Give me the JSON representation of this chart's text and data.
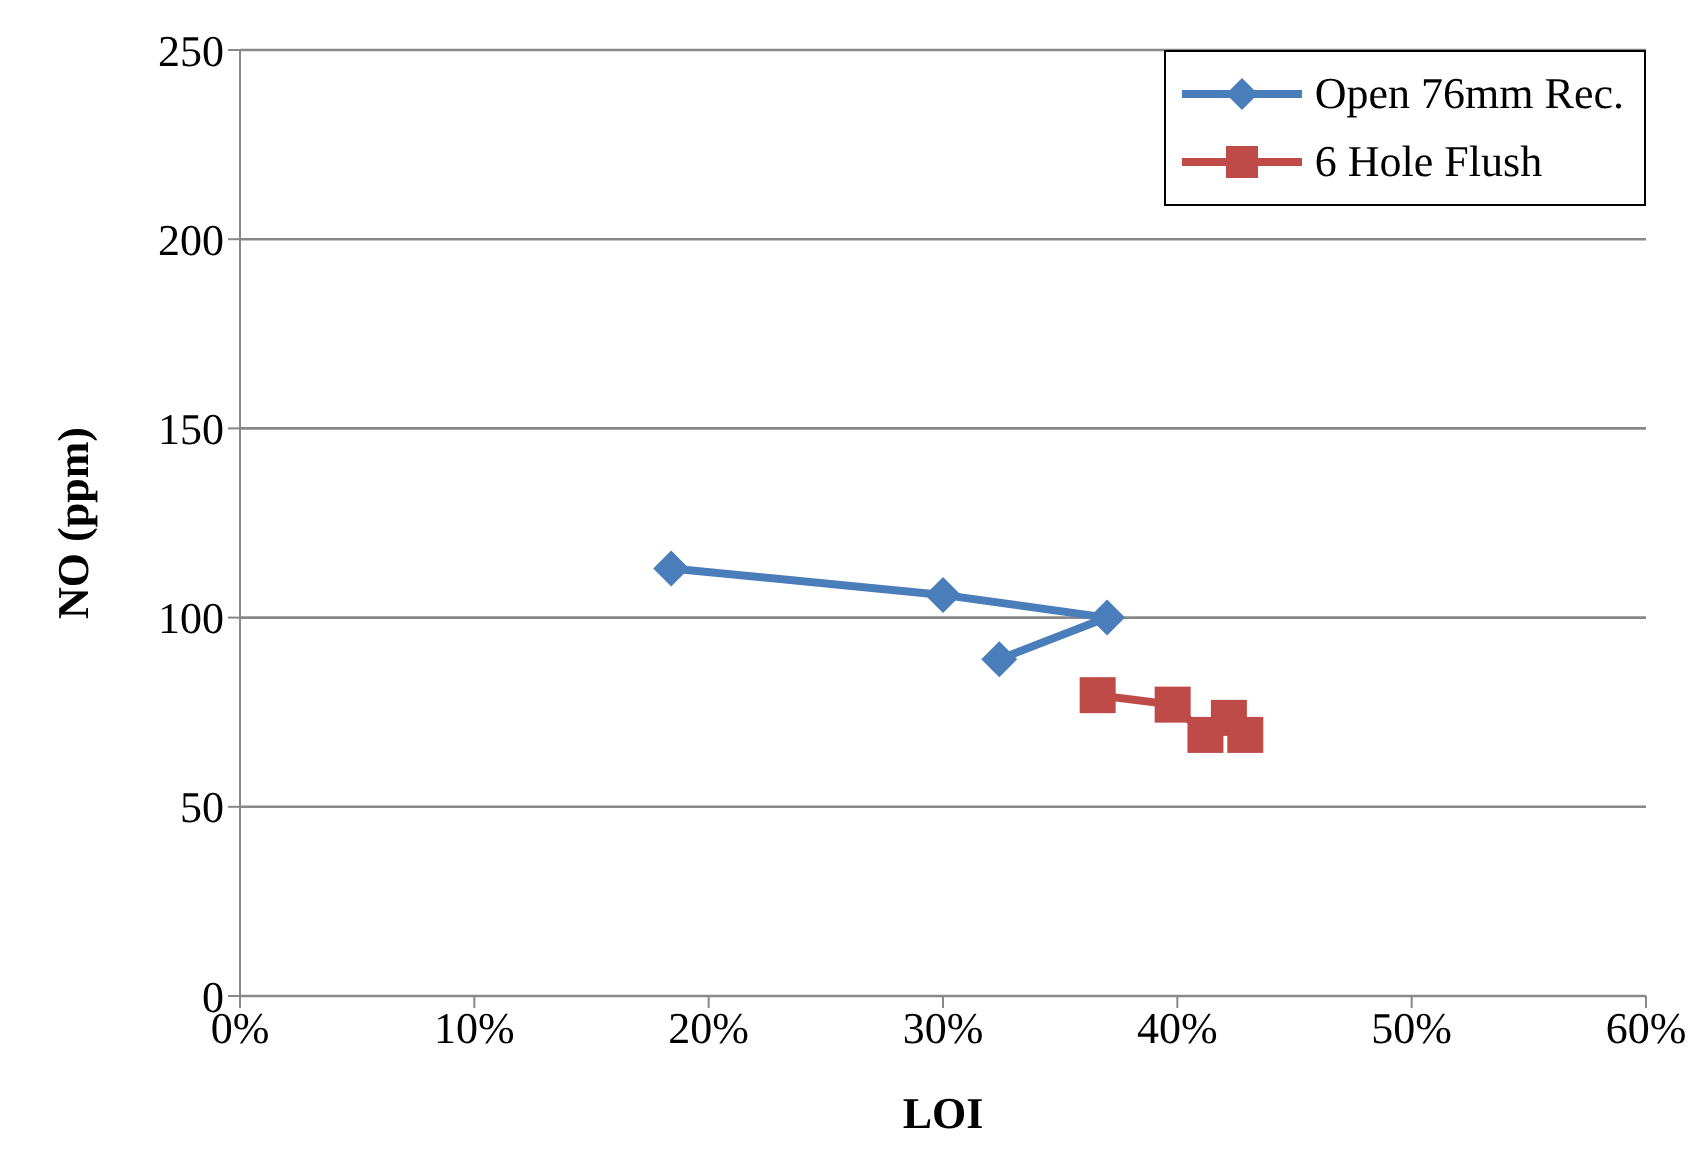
{
  "chart_data": {
    "type": "line",
    "xlabel": "LOI",
    "ylabel": "NO (ppm)",
    "xlim": [
      0,
      60
    ],
    "xticks": [
      {
        "value": 0,
        "label": "0%"
      },
      {
        "value": 10,
        "label": "10%"
      },
      {
        "value": 20,
        "label": "20%"
      },
      {
        "value": 30,
        "label": "30%"
      },
      {
        "value": 40,
        "label": "40%"
      },
      {
        "value": 50,
        "label": "50%"
      },
      {
        "value": 60,
        "label": "60%"
      }
    ],
    "ylim": [
      0,
      250
    ],
    "yticks": [
      0,
      50,
      100,
      150,
      200,
      250
    ],
    "grid": "y",
    "legend": "top right",
    "line_style": "solid",
    "series": [
      {
        "name": "Open 76mm Rec.",
        "color": "#4a7ebb",
        "marker": "diamond",
        "x": [
          18.4,
          30.0,
          37.0,
          32.4
        ],
        "values": [
          113,
          106,
          100,
          89
        ]
      },
      {
        "name": "6 Hole Flush",
        "color": "#be4b48",
        "marker": "square",
        "x": [
          36.6,
          39.8,
          41.2,
          42.2,
          42.9
        ],
        "values": [
          79.5,
          77,
          69,
          73.5,
          69
        ]
      }
    ]
  }
}
